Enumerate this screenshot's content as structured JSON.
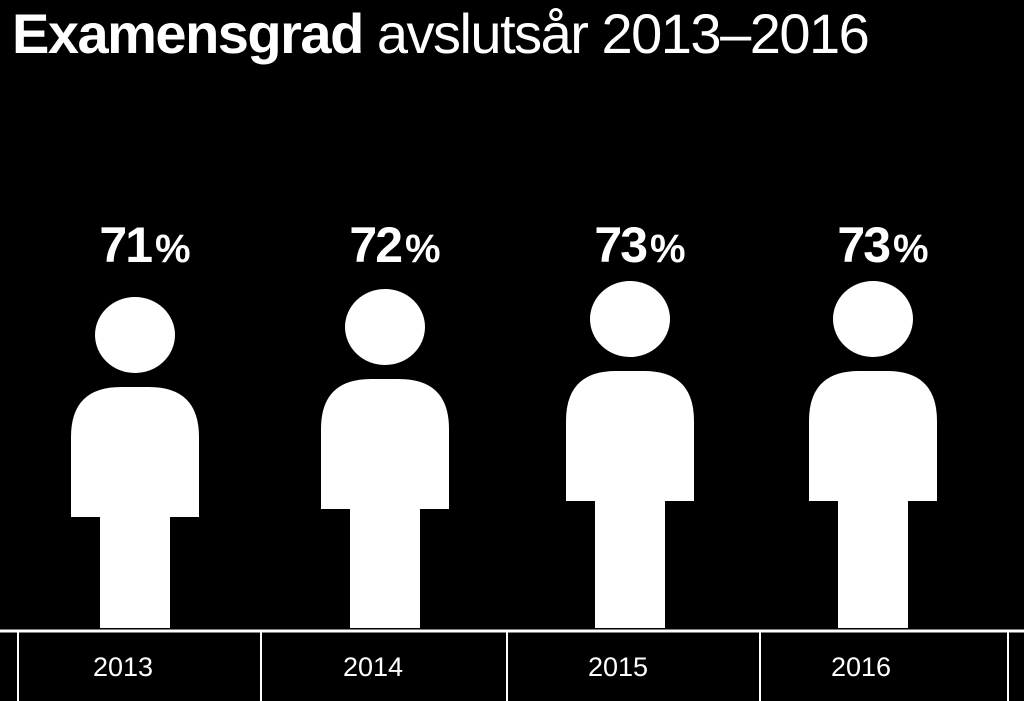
{
  "title": {
    "bold": "Examensgrad",
    "light": "avslutsår 2013–2016"
  },
  "chart_data": {
    "type": "pictogram",
    "title": "Examensgrad avslutsår 2013–2016",
    "unit": "%",
    "categories": [
      "2013",
      "2014",
      "2015",
      "2016"
    ],
    "values": [
      71,
      72,
      73,
      73
    ]
  },
  "colors": {
    "background": "#000000",
    "figure": "#ffffff",
    "text": "#ffffff"
  }
}
